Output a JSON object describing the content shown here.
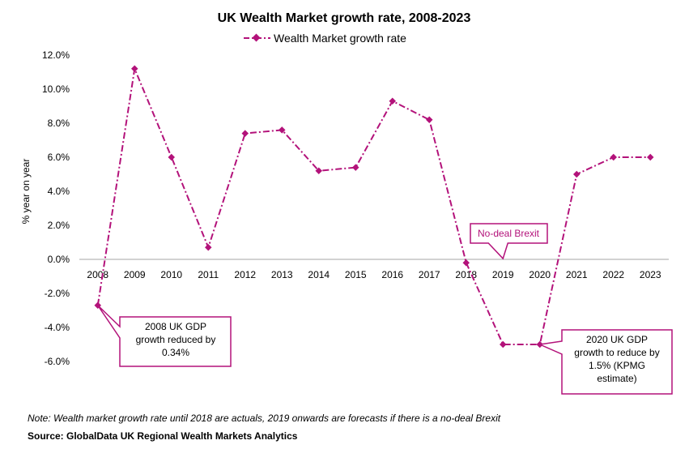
{
  "chart_data": {
    "type": "line",
    "title": "UK Wealth Market growth rate, 2008-2023",
    "ylabel": "% year on year",
    "xlabel": "",
    "ylim": [
      -6,
      12
    ],
    "yticks": [
      12,
      10,
      8,
      6,
      4,
      2,
      0,
      -2,
      -4,
      -6
    ],
    "ytick_labels": [
      "12.0%",
      "10.0%",
      "8.0%",
      "6.0%",
      "4.0%",
      "2.0%",
      "0.0%",
      "-2.0%",
      "-4.0%",
      "-6.0%"
    ],
    "legend_position": "top-center",
    "color": "#b3127a",
    "categories": [
      "2008",
      "2009",
      "2010",
      "2011",
      "2012",
      "2013",
      "2014",
      "2015",
      "2016",
      "2017",
      "2018",
      "2019",
      "2020",
      "2021",
      "2022",
      "2023"
    ],
    "series": [
      {
        "name": "Wealth Market growth rate",
        "values": [
          -2.7,
          11.2,
          6.0,
          0.7,
          7.4,
          7.6,
          5.2,
          5.4,
          9.3,
          8.2,
          -0.2,
          -5.0,
          -5.0,
          5.0,
          6.0,
          6.0
        ]
      }
    ],
    "annotations": [
      {
        "lines": [
          "2008 UK GDP",
          "growth reduced by",
          "0.34%"
        ],
        "category": "2008"
      },
      {
        "lines": [
          "No-deal Brexit"
        ],
        "category": "2019"
      },
      {
        "lines": [
          "2020 UK GDP",
          "growth to reduce by",
          "1.5% (KPMG",
          "estimate)"
        ],
        "category": "2020"
      }
    ]
  },
  "footer": {
    "note": "Note: Wealth market growth rate  until 2018 are actuals, 2019 onwards are forecasts if there is a no-deal  Brexit",
    "source": "Source: GlobalData UK Regional Wealth Markets Analytics"
  }
}
